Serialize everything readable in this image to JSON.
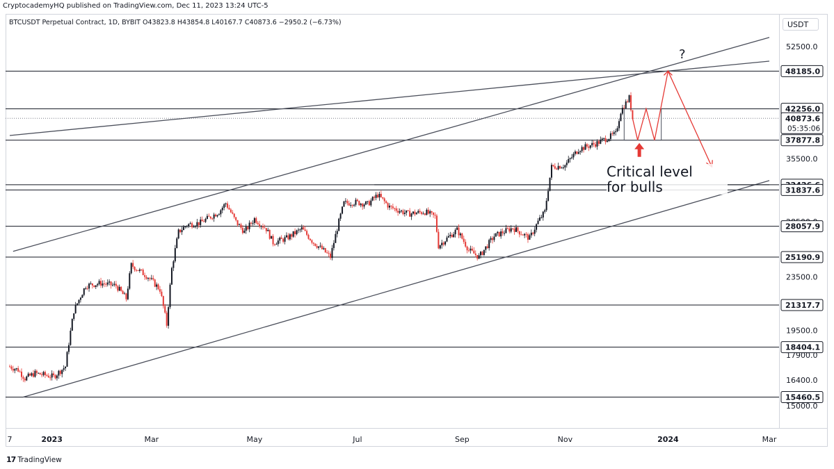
{
  "header": {
    "publisher": "CryptocademyHQ published on TradingView.com, Dec 11, 2023 13:24 UTC-5",
    "symbol": "BTCUSDT Perpetual Contract, 1D, BYBIT",
    "ohlc": "O43823.8  H43854.8  L40167.7  C40873.6  −2950.2 (−6.73%)",
    "currency": "USDT"
  },
  "footer": {
    "logo_text": "TradingView",
    "logo_mark": "17"
  },
  "annotations": {
    "critical_line1": "Critical level",
    "critical_line2": "for bulls",
    "question": "?",
    "countdown": "05:35:06"
  },
  "colors": {
    "candle_up": "#131722",
    "candle_down": "#e53935",
    "last_price_bg": "#131722",
    "trend_line": "#4a4e5a",
    "level_line": "#131722",
    "projection": "#e53935",
    "arrow": "#e53935"
  },
  "chart_data": {
    "type": "candlestick",
    "title": "",
    "xlabel": "",
    "ylabel": "",
    "ylim": [
      14200,
      56500
    ],
    "x_ticks": [
      "7",
      "2023",
      "Mar",
      "May",
      "Jul",
      "Sep",
      "Nov",
      "2024",
      "Mar"
    ],
    "y_ticks": [
      15000.0,
      16400.0,
      17900.0,
      19500.0,
      23500.0,
      28500.0,
      35500.0,
      42500.0,
      52500.0
    ],
    "levels": [
      48185.0,
      42256.0,
      37877.8,
      32426.6,
      31837.6,
      28057.9,
      25190.9,
      21317.7,
      18404.1,
      15460.5
    ],
    "last_price": 40873.6,
    "grid": false,
    "price_path": [
      [
        "2022-12-07",
        17200
      ],
      [
        "2022-12-12",
        17000
      ],
      [
        "2022-12-16",
        16500
      ],
      [
        "2022-12-22",
        16800
      ],
      [
        "2023-01-02",
        16600
      ],
      [
        "2023-01-09",
        17200
      ],
      [
        "2023-01-14",
        20900
      ],
      [
        "2023-01-21",
        22800
      ],
      [
        "2023-01-30",
        23000
      ],
      [
        "2023-02-08",
        22800
      ],
      [
        "2023-02-14",
        21800
      ],
      [
        "2023-02-17",
        24500
      ],
      [
        "2023-02-27",
        23500
      ],
      [
        "2023-03-06",
        22500
      ],
      [
        "2023-03-10",
        19900
      ],
      [
        "2023-03-13",
        24200
      ],
      [
        "2023-03-17",
        27500
      ],
      [
        "2023-03-22",
        28200
      ],
      [
        "2023-03-30",
        28400
      ],
      [
        "2023-04-10",
        29500
      ],
      [
        "2023-04-14",
        30400
      ],
      [
        "2023-04-20",
        28500
      ],
      [
        "2023-04-25",
        27500
      ],
      [
        "2023-05-01",
        28800
      ],
      [
        "2023-05-08",
        27800
      ],
      [
        "2023-05-12",
        26500
      ],
      [
        "2023-05-20",
        26900
      ],
      [
        "2023-05-29",
        27800
      ],
      [
        "2023-06-05",
        26500
      ],
      [
        "2023-06-10",
        25900
      ],
      [
        "2023-06-15",
        25200
      ],
      [
        "2023-06-20",
        28500
      ],
      [
        "2023-06-23",
        30400
      ],
      [
        "2023-06-30",
        30500
      ],
      [
        "2023-07-07",
        30300
      ],
      [
        "2023-07-13",
        31300
      ],
      [
        "2023-07-20",
        30000
      ],
      [
        "2023-07-31",
        29300
      ],
      [
        "2023-08-10",
        29500
      ],
      [
        "2023-08-16",
        29000
      ],
      [
        "2023-08-18",
        26200
      ],
      [
        "2023-08-29",
        27700
      ],
      [
        "2023-09-05",
        25800
      ],
      [
        "2023-09-11",
        25200
      ],
      [
        "2023-09-20",
        27100
      ],
      [
        "2023-10-01",
        27900
      ],
      [
        "2023-10-11",
        26900
      ],
      [
        "2023-10-16",
        28500
      ],
      [
        "2023-10-20",
        29500
      ],
      [
        "2023-10-24",
        34500
      ],
      [
        "2023-11-01",
        34700
      ],
      [
        "2023-11-09",
        36700
      ],
      [
        "2023-11-20",
        37500
      ],
      [
        "2023-12-01",
        38700
      ],
      [
        "2023-12-04",
        41900
      ],
      [
        "2023-12-09",
        43900
      ],
      [
        "2023-12-11",
        40873.6
      ]
    ],
    "channel_upper": [
      [
        "2022-12-09",
        25700
      ],
      [
        "2024-03-01",
        54200
      ]
    ],
    "channel_lower": [
      [
        "2022-12-15",
        15460
      ],
      [
        "2024-03-01",
        32900
      ]
    ],
    "outer_line": [
      [
        "2022-12-07",
        38500
      ],
      [
        "2024-03-01",
        49900
      ]
    ],
    "horizontal_segment": [
      [
        "2023-07-11",
        32426.6
      ],
      [
        "2024-03-01",
        32426.6
      ]
    ],
    "projection_path": [
      [
        "2023-12-11",
        40873.6
      ],
      [
        "2023-12-14",
        37877.8
      ],
      [
        "2023-12-19",
        42256.0
      ],
      [
        "2023-12-24",
        37877.8
      ],
      [
        "2024-01-01",
        48185.0
      ],
      [
        "2024-01-27",
        34500.0
      ]
    ],
    "consolidation_box": {
      "from": "2023-12-06",
      "to": "2023-12-28",
      "top": 42256.0,
      "bottom": 37877.8
    },
    "arrow_point": [
      "2023-12-15",
      37877.8
    ]
  }
}
